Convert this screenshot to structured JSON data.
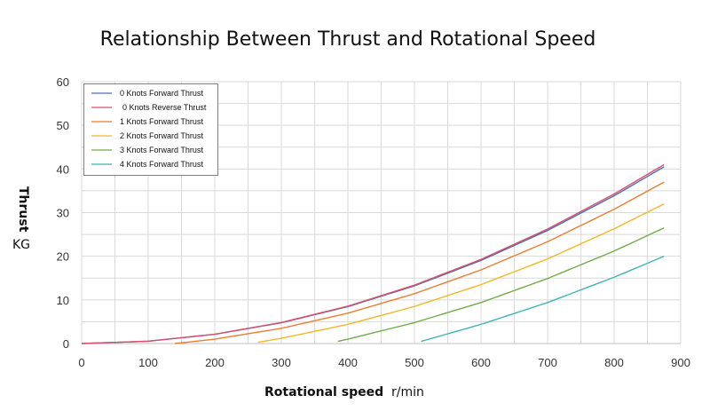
{
  "chart_data": {
    "type": "line",
    "title": "Relationship Between Thrust and Rotational Speed",
    "xlabel": "Rotational speed",
    "xunit": "r/min",
    "ylabel": "Thrust",
    "yunit": "KG",
    "xlim": [
      0,
      900
    ],
    "ylim": [
      0,
      60
    ],
    "xticks": [
      0,
      100,
      200,
      300,
      400,
      500,
      600,
      700,
      800,
      900
    ],
    "yticks": [
      0,
      10,
      20,
      30,
      40,
      50,
      60
    ],
    "grid": true,
    "legend_position": "top-left",
    "series": [
      {
        "name": "0 Knots Forward Thrust",
        "color": "#4a6fb5",
        "x": [
          0,
          100,
          200,
          300,
          400,
          500,
          600,
          700,
          800,
          875
        ],
        "y": [
          0,
          0.53,
          2.12,
          4.76,
          8.46,
          13.22,
          19.04,
          25.92,
          33.86,
          40.5
        ]
      },
      {
        "name": "0 Knots Reverse Thrust",
        "color": "#d9506a",
        "x": [
          0,
          100,
          200,
          300,
          400,
          500,
          600,
          700,
          800,
          875
        ],
        "y": [
          0,
          0.54,
          2.14,
          4.82,
          8.57,
          13.39,
          19.28,
          26.24,
          34.27,
          41
        ]
      },
      {
        "name": "1 Knots Forward Thrust",
        "color": "#ed7d31",
        "x": [
          140,
          200,
          300,
          400,
          500,
          600,
          700,
          800,
          875
        ],
        "y": [
          0,
          1.01,
          3.49,
          6.96,
          11.43,
          16.88,
          23.33,
          30.77,
          37
        ]
      },
      {
        "name": "2 Knots Forward Thrust",
        "color": "#f2b824",
        "x": [
          265,
          300,
          400,
          500,
          600,
          700,
          800,
          875
        ],
        "y": [
          0.3,
          1.2,
          4.4,
          8.5,
          13.5,
          19.4,
          26.3,
          32
        ]
      },
      {
        "name": "3 Knots Forward Thrust",
        "color": "#70ad47",
        "x": [
          385,
          400,
          500,
          600,
          700,
          800,
          875
        ],
        "y": [
          0.5,
          1.0,
          4.8,
          9.4,
          14.9,
          21.2,
          26.5
        ]
      },
      {
        "name": "4 Knots Forward Thrust",
        "color": "#3fb5b5",
        "x": [
          510,
          600,
          700,
          800,
          875
        ],
        "y": [
          0.5,
          4.4,
          9.4,
          15.2,
          20
        ]
      }
    ]
  }
}
